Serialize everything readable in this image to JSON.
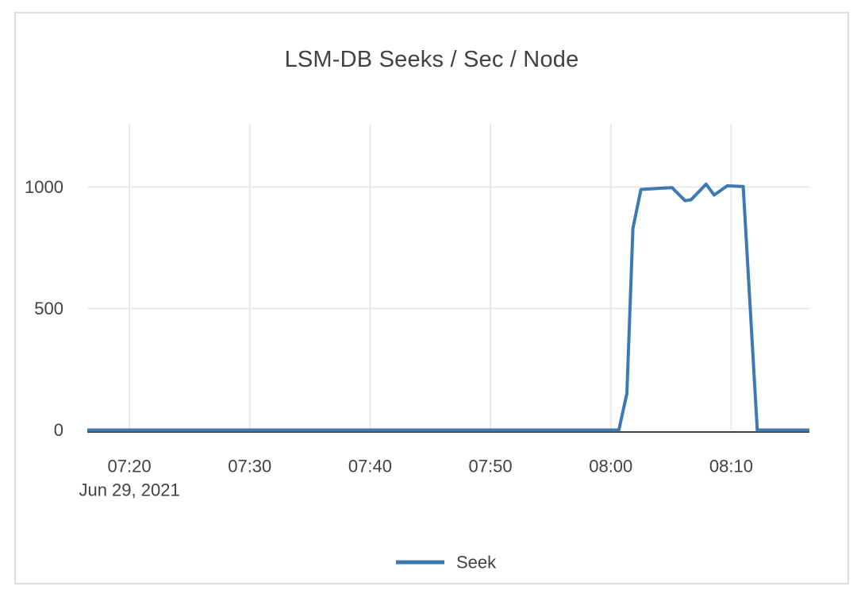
{
  "card": {
    "border_color": "#dcdcdc",
    "background": "#ffffff"
  },
  "chart_data": {
    "type": "line",
    "title": "LSM-DB Seeks / Sec / Node",
    "xlabel": "",
    "ylabel": "",
    "x_tick_labels": [
      "07:20",
      "07:30",
      "07:40",
      "07:50",
      "08:00",
      "08:10"
    ],
    "x_date_label": "Jun 29, 2021",
    "y_ticks": [
      0,
      500,
      1000
    ],
    "xlim": [
      "07:16:30",
      "08:16:30"
    ],
    "ylim": [
      0,
      1260
    ],
    "grid": true,
    "legend_position": "bottom-center",
    "colors": {
      "text": "#424242",
      "gridline": "#e9e9e9",
      "zeroline": "#424242",
      "series_blue": "#3d79b2"
    },
    "series": [
      {
        "name": "Seek",
        "color": "#3d79b2",
        "points": [
          [
            "07:16:30",
            0
          ],
          [
            "08:00:40",
            0
          ],
          [
            "08:01:20",
            150
          ],
          [
            "08:01:50",
            830
          ],
          [
            "08:02:30",
            990
          ],
          [
            "08:04:00",
            995
          ],
          [
            "08:05:05",
            998
          ],
          [
            "08:06:10",
            944
          ],
          [
            "08:06:40",
            948
          ],
          [
            "08:07:55",
            1012
          ],
          [
            "08:08:35",
            967
          ],
          [
            "08:09:40",
            1005
          ],
          [
            "08:11:00",
            1002
          ],
          [
            "08:12:10",
            0
          ],
          [
            "08:16:30",
            0
          ]
        ]
      }
    ]
  }
}
